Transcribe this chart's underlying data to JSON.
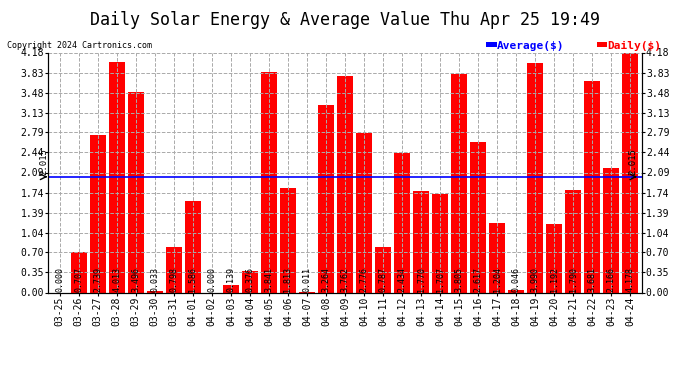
{
  "title": "Daily Solar Energy & Average Value Thu Apr 25 19:49",
  "copyright": "Copyright 2024 Cartronics.com",
  "legend_average": "Average($)",
  "legend_daily": "Daily($)",
  "average_value": 2.015,
  "categories": [
    "03-25",
    "03-26",
    "03-27",
    "03-28",
    "03-29",
    "03-30",
    "03-31",
    "04-01",
    "04-02",
    "04-03",
    "04-04",
    "04-05",
    "04-06",
    "04-07",
    "04-08",
    "04-09",
    "04-10",
    "04-11",
    "04-12",
    "04-13",
    "04-14",
    "04-15",
    "04-16",
    "04-17",
    "04-18",
    "04-19",
    "04-20",
    "04-21",
    "04-22",
    "04-23",
    "04-24"
  ],
  "values": [
    0.0,
    0.707,
    2.739,
    4.013,
    3.496,
    0.033,
    0.798,
    1.586,
    0.0,
    0.139,
    0.376,
    3.841,
    1.813,
    0.011,
    3.264,
    3.762,
    2.776,
    0.787,
    2.434,
    1.77,
    1.707,
    3.805,
    2.617,
    1.204,
    0.046,
    3.99,
    1.192,
    1.79,
    3.681,
    2.166,
    4.178
  ],
  "bar_color": "#ff0000",
  "average_line_color": "#0000ff",
  "background_color": "#ffffff",
  "grid_color": "#aaaaaa",
  "title_color": "#000000",
  "copyright_color": "#000000",
  "ylim_min": 0.0,
  "ylim_max": 4.18,
  "yticks": [
    0.0,
    0.35,
    0.7,
    1.04,
    1.39,
    1.74,
    2.09,
    2.44,
    2.79,
    3.13,
    3.48,
    3.83,
    4.18
  ],
  "bar_width": 0.85,
  "title_fontsize": 12,
  "tick_fontsize": 7,
  "label_fontsize": 6,
  "avg_label": "2.015"
}
